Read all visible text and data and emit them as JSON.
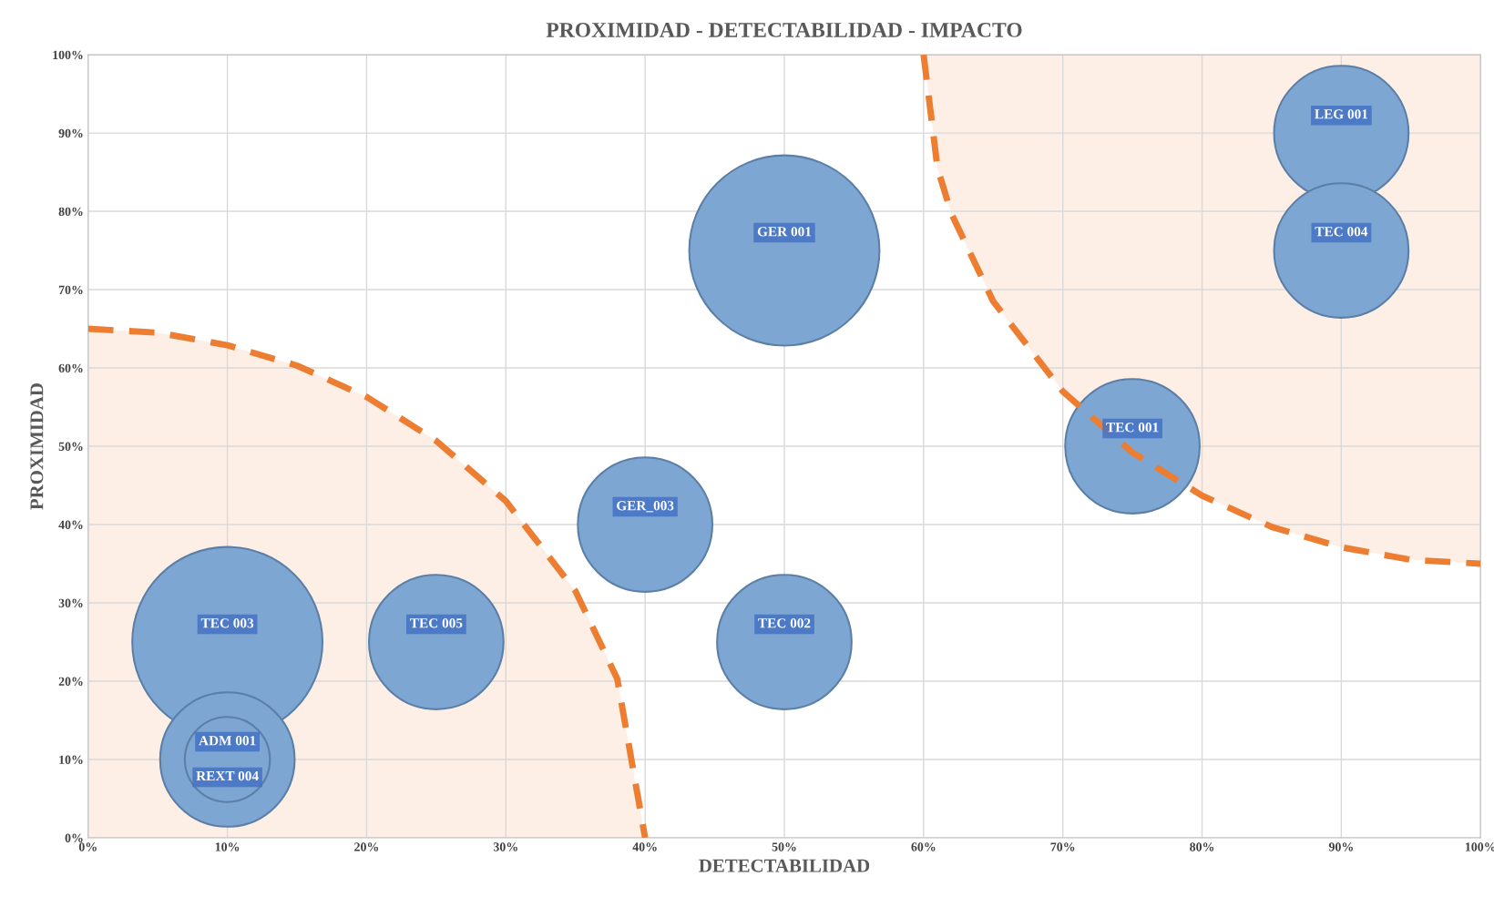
{
  "chart_data": {
    "type": "bubble",
    "title": "PROXIMIDAD - DETECTABILIDAD - IMPACTO",
    "xlabel": "DETECTABILIDAD",
    "ylabel": "PROXIMIDAD",
    "xlim": [
      0,
      100
    ],
    "ylim": [
      0,
      100
    ],
    "xticks": [
      {
        "value": 0,
        "label": "0%"
      },
      {
        "value": 10,
        "label": "10%"
      },
      {
        "value": 20,
        "label": "20%"
      },
      {
        "value": 30,
        "label": "30%"
      },
      {
        "value": 40,
        "label": "40%"
      },
      {
        "value": 50,
        "label": "50%"
      },
      {
        "value": 60,
        "label": "60%"
      },
      {
        "value": 70,
        "label": "70%"
      },
      {
        "value": 80,
        "label": "80%"
      },
      {
        "value": 90,
        "label": "90%"
      },
      {
        "value": 100,
        "label": "100%"
      }
    ],
    "yticks": [
      {
        "value": 0,
        "label": "0%"
      },
      {
        "value": 10,
        "label": "10%"
      },
      {
        "value": 20,
        "label": "20%"
      },
      {
        "value": 30,
        "label": "30%"
      },
      {
        "value": 40,
        "label": "40%"
      },
      {
        "value": 50,
        "label": "50%"
      },
      {
        "value": 60,
        "label": "60%"
      },
      {
        "value": 70,
        "label": "70%"
      },
      {
        "value": 80,
        "label": "80%"
      },
      {
        "value": 90,
        "label": "90%"
      },
      {
        "value": 100,
        "label": "100%"
      }
    ],
    "grid": true,
    "series": [
      {
        "color": "#7ea6d3",
        "x": [
          50,
          10,
          25,
          40,
          50,
          75,
          90,
          90,
          10,
          10
        ],
        "values": [
          75,
          25,
          25,
          40,
          25,
          50,
          90,
          75,
          10,
          10
        ],
        "sizes": [
          1,
          1,
          0.5,
          0.5,
          0.5,
          0.5,
          0.5,
          0.5,
          0.5,
          0.2
        ]
      },
      {
        "type": "line",
        "color": "#ed7d31",
        "line_style": "dashed",
        "x": [
          0,
          5,
          10,
          15,
          20,
          25,
          30,
          35,
          38,
          40
        ],
        "values": [
          65,
          64.5,
          62.9,
          60.3,
          56.3,
          50.7,
          43,
          31.5,
          20.3,
          0
        ],
        "lower": [
          0,
          0,
          0,
          0,
          0,
          0,
          0,
          0,
          0,
          0
        ],
        "upper": [
          65,
          64.5,
          62.9,
          60.3,
          56.3,
          50.7,
          43,
          31.5,
          20.3,
          0
        ]
      },
      {
        "type": "line",
        "color": "#ed7d31",
        "line_style": "dashed",
        "x": [
          60,
          61,
          62,
          65,
          70,
          75,
          80,
          85,
          90,
          95,
          100
        ],
        "values": [
          100,
          85.5,
          79.7,
          68.5,
          57,
          49.2,
          43.7,
          39.7,
          37.1,
          35.5,
          35
        ],
        "lower": [
          100,
          85.5,
          79.7,
          68.5,
          57,
          49.2,
          43.7,
          39.7,
          37.1,
          35.5,
          35
        ],
        "upper": [
          100,
          100,
          100,
          100,
          100,
          100,
          100,
          100,
          100,
          100,
          100
        ]
      }
    ],
    "annotations": [
      {
        "text": "GER 001",
        "x": 50,
        "y": 75
      },
      {
        "text": "TEC 003",
        "x": 10,
        "y": 25
      },
      {
        "text": "TEC 005",
        "x": 25,
        "y": 25
      },
      {
        "text": "GER_003",
        "x": 40,
        "y": 40
      },
      {
        "text": "TEC 002",
        "x": 50,
        "y": 25
      },
      {
        "text": "TEC 001",
        "x": 75,
        "y": 50
      },
      {
        "text": "LEG 001",
        "x": 90,
        "y": 90
      },
      {
        "text": "TEC 004",
        "x": 90,
        "y": 75
      },
      {
        "text": "ADM 001",
        "x": 10,
        "y": 10
      },
      {
        "text": "REXT 004",
        "x": 10,
        "y": 10
      }
    ]
  }
}
